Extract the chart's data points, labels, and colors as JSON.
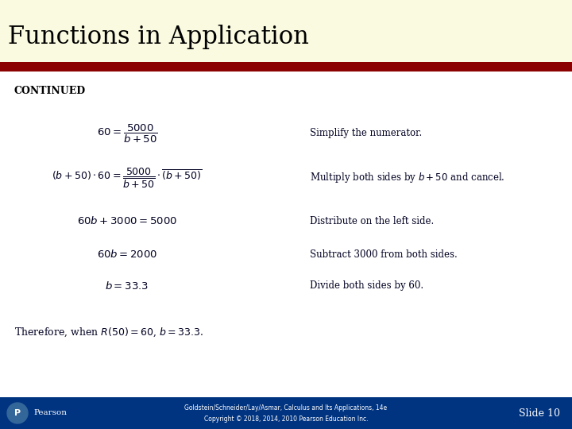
{
  "title": "Functions in Application",
  "title_bg": "#fafae0",
  "title_color": "#000000",
  "title_fontsize": 22,
  "bar_color": "#8b0000",
  "continued_label": "CONTINUED",
  "bg_color": "#ffffff",
  "step_annotations": [
    "Simplify the numerator.",
    "Multiply both sides by $b + 50$ and cancel.",
    "Distribute on the left side.",
    "Subtract 3000 from both sides.",
    "Divide both sides by 60."
  ],
  "footer_bg": "#003380",
  "footer_text1": "Goldstein/Schneider/Lay/Asmar, Calculus and Its Applications, 14e",
  "footer_text2": "Copyright © 2018, 2014, 2010 Pearson Education Inc.",
  "slide_label": "Slide 10"
}
